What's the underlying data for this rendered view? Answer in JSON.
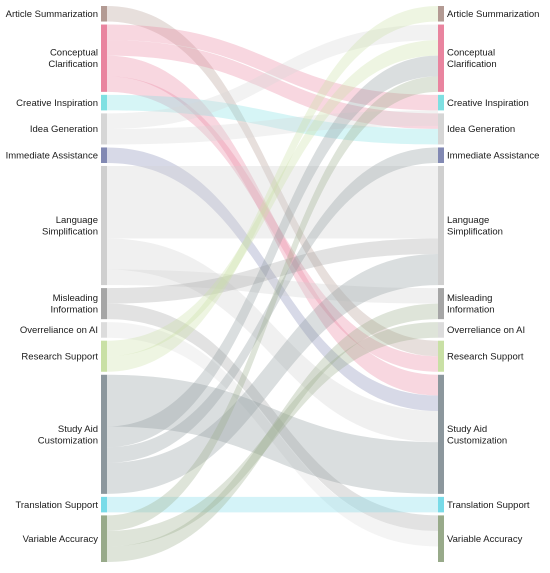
{
  "chart_data": {
    "type": "sankey",
    "nodes": [
      {
        "id": "article-summarization",
        "label": [
          "Article Summarization"
        ],
        "value": 3,
        "color": "#b39a93"
      },
      {
        "id": "conceptual-clarification",
        "label": [
          "Conceptual",
          "Clarification"
        ],
        "value": 13,
        "color": "#e9849f"
      },
      {
        "id": "creative-inspiration",
        "label": [
          "Creative Inspiration"
        ],
        "value": 3,
        "color": "#7fe0e2"
      },
      {
        "id": "idea-generation",
        "label": [
          "Idea Generation"
        ],
        "value": 6,
        "color": "#d6d6d6"
      },
      {
        "id": "immediate-assistance",
        "label": [
          "Immediate Assistance"
        ],
        "value": 3,
        "color": "#8289b3"
      },
      {
        "id": "language-simplification",
        "label": [
          "Language",
          "Simplification"
        ],
        "value": 23,
        "color": "#cfcfcf"
      },
      {
        "id": "misleading-information",
        "label": [
          "Misleading",
          "Information"
        ],
        "value": 6,
        "color": "#a6a6a6"
      },
      {
        "id": "overreliance-on-ai",
        "label": [
          "Overreliance on AI"
        ],
        "value": 3,
        "color": "#dcdcdc"
      },
      {
        "id": "research-support",
        "label": [
          "Research Support"
        ],
        "value": 6,
        "color": "#c9e0a5"
      },
      {
        "id": "study-aid-customization",
        "label": [
          "Study Aid",
          "Customization"
        ],
        "value": 23,
        "color": "#8c979d"
      },
      {
        "id": "translation-support",
        "label": [
          "Translation Support"
        ],
        "value": 3,
        "color": "#79dbe8"
      },
      {
        "id": "variable-accuracy",
        "label": [
          "Variable Accuracy"
        ],
        "value": 9,
        "color": "#98aa8a"
      }
    ],
    "links": [
      {
        "source": "article-summarization",
        "target": "research-support",
        "value": 3
      },
      {
        "source": "conceptual-clarification",
        "target": "creative-inspiration",
        "value": 3
      },
      {
        "source": "conceptual-clarification",
        "target": "idea-generation",
        "value": 3
      },
      {
        "source": "conceptual-clarification",
        "target": "study-aid-customization",
        "value": 4
      },
      {
        "source": "conceptual-clarification",
        "target": "research-support",
        "value": 3
      },
      {
        "source": "creative-inspiration",
        "target": "idea-generation",
        "value": 3
      },
      {
        "source": "idea-generation",
        "target": "conceptual-clarification",
        "value": 3
      },
      {
        "source": "idea-generation",
        "target": "creative-inspiration",
        "value": 3
      },
      {
        "source": "immediate-assistance",
        "target": "study-aid-customization",
        "value": 3
      },
      {
        "source": "language-simplification",
        "target": "language-simplification",
        "value": 14
      },
      {
        "source": "language-simplification",
        "target": "study-aid-customization",
        "value": 6
      },
      {
        "source": "language-simplification",
        "target": "misleading-information",
        "value": 3
      },
      {
        "source": "misleading-information",
        "target": "language-simplification",
        "value": 3
      },
      {
        "source": "misleading-information",
        "target": "variable-accuracy",
        "value": 3
      },
      {
        "source": "overreliance-on-ai",
        "target": "variable-accuracy",
        "value": 3
      },
      {
        "source": "research-support",
        "target": "conceptual-clarification",
        "value": 3
      },
      {
        "source": "research-support",
        "target": "article-summarization",
        "value": 3
      },
      {
        "source": "study-aid-customization",
        "target": "study-aid-customization",
        "value": 10
      },
      {
        "source": "study-aid-customization",
        "target": "conceptual-clarification",
        "value": 4
      },
      {
        "source": "study-aid-customization",
        "target": "immediate-assistance",
        "value": 3
      },
      {
        "source": "study-aid-customization",
        "target": "language-simplification",
        "value": 6
      },
      {
        "source": "translation-support",
        "target": "translation-support",
        "value": 3
      },
      {
        "source": "variable-accuracy",
        "target": "conceptual-clarification",
        "value": 3
      },
      {
        "source": "variable-accuracy",
        "target": "overreliance-on-ai",
        "value": 3
      },
      {
        "source": "variable-accuracy",
        "target": "misleading-information",
        "value": 3
      }
    ]
  }
}
